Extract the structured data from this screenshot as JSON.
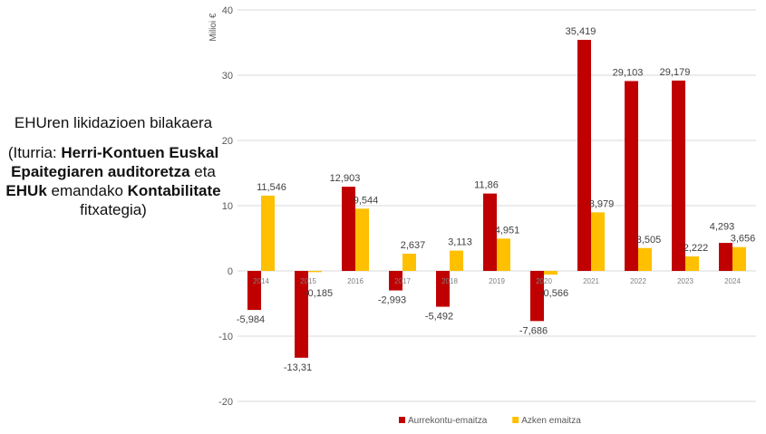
{
  "side": {
    "title": "EHUren likidazioen bilakaera",
    "source_parts": [
      {
        "text": "(Iturria: ",
        "bold": false
      },
      {
        "text": "Herri-Kontuen Euskal Epaitegiaren auditoretza",
        "bold": true
      },
      {
        "text": " eta ",
        "bold": false
      },
      {
        "text": "EHUk",
        "bold": true
      },
      {
        "text": " emandako ",
        "bold": false
      },
      {
        "text": "Kontabilitate",
        "bold": true
      },
      {
        "text": " fitxategia)",
        "bold": false
      }
    ]
  },
  "chart_data": {
    "type": "bar",
    "title": "",
    "xlabel": "",
    "ylabel": "Milioi €",
    "ylim": [
      -20,
      40
    ],
    "yticks": [
      -20,
      -10,
      0,
      10,
      20,
      30,
      40
    ],
    "grid": true,
    "legend_placement": "bottom",
    "categories": [
      "2014",
      "2015",
      "2016",
      "2017",
      "2018",
      "2019",
      "2020",
      "2021",
      "2022",
      "2023",
      "2024"
    ],
    "series": [
      {
        "name": "Aurrekontu-emaitza",
        "color": "#C00000",
        "values": [
          -5.984,
          -13.31,
          12.903,
          -2.993,
          -5.492,
          11.86,
          -7.686,
          35.419,
          29.103,
          29.179,
          4.293
        ]
      },
      {
        "name": "Azken emaitza",
        "color": "#FFC000",
        "values": [
          11.546,
          -0.185,
          9.544,
          2.637,
          3.113,
          4.951,
          -0.566,
          8.979,
          3.505,
          2.222,
          3.656
        ]
      }
    ]
  }
}
